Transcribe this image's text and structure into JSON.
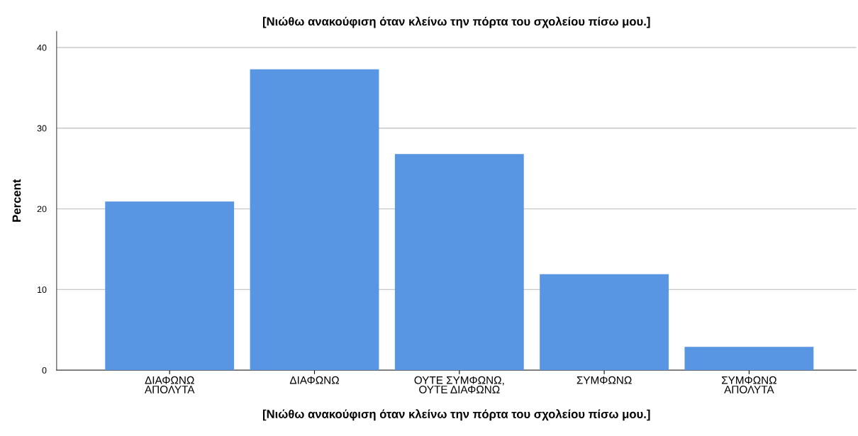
{
  "chart_data": {
    "type": "bar",
    "title": "[Νιώθω ανακούφιση όταν κλείνω την πόρτα του σχολείου πίσω μου.]",
    "xlabel": "[Νιώθω ανακούφιση όταν κλείνω την πόρτα του σχολείου πίσω μου.]",
    "ylabel": "Percent",
    "categories": [
      "ΔΙΑΦΩΝΩ\nΑΠΟΛΥΤΑ",
      "ΔΙΑΦΩΝΩ",
      "ΟΥΤΕ ΣΥΜΦΩΝΩ,\nΟΥΤΕ ΔΙΑΦΩΝΩ",
      "ΣΥΜΦΩΝΩ",
      "ΣΥΜΦΩΝΩ\nΑΠΟΛΥΤΑ"
    ],
    "values": [
      20.9,
      37.3,
      26.8,
      11.9,
      2.9
    ],
    "color": "#5895e3",
    "ylim": [
      0,
      42
    ],
    "yticks": [
      0,
      10,
      20,
      30,
      40
    ],
    "grid": "y"
  }
}
